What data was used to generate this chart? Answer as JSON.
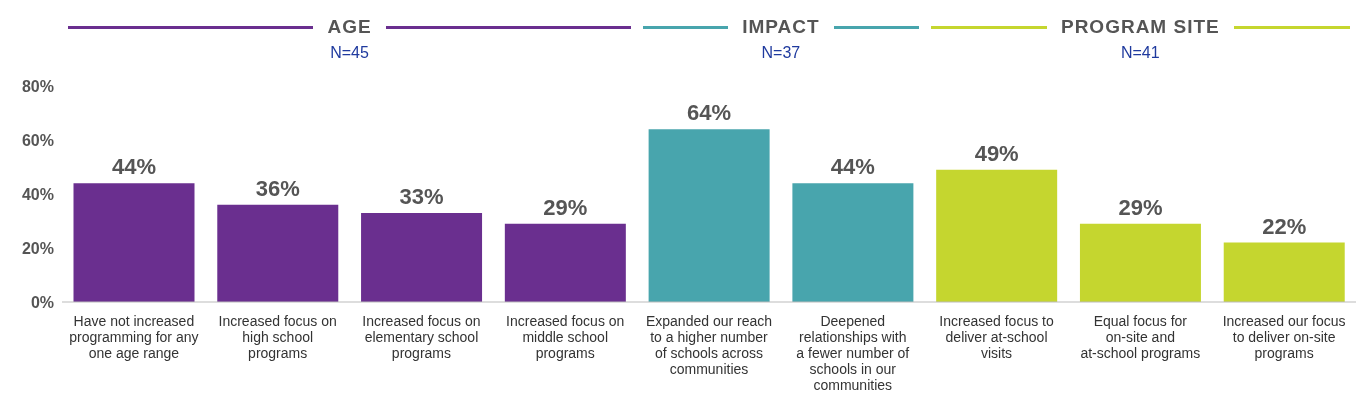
{
  "chart_data": {
    "type": "bar",
    "categories": [
      "Have not increased programming for any one age range",
      "Increased focus on high school programs",
      "Increased focus on elementary school programs",
      "Increased focus on middle school programs",
      "Expanded our reach to a higher number of schools across communities",
      "Deepened relationships with a fewer number of schools in our communities",
      "Increased focus to deliver at-school visits",
      "Equal focus for on-site and at-school programs",
      "Increased our focus to deliver on-site programs"
    ],
    "values": [
      44,
      36,
      33,
      29,
      64,
      44,
      49,
      29,
      22
    ],
    "colors": [
      "#6a2f8f",
      "#6a2f8f",
      "#6a2f8f",
      "#6a2f8f",
      "#48a5ad",
      "#48a5ad",
      "#c5d62f",
      "#c5d62f",
      "#c5d62f"
    ],
    "value_labels": [
      "44%",
      "36%",
      "33%",
      "29%",
      "64%",
      "44%",
      "49%",
      "29%",
      "22%"
    ],
    "ylim": [
      0,
      80
    ],
    "yticks": [
      {
        "value": 0,
        "label": "0%"
      },
      {
        "value": 20,
        "label": "20%"
      },
      {
        "value": 40,
        "label": "40%"
      },
      {
        "value": 60,
        "label": "60%"
      },
      {
        "value": 80,
        "label": "80%"
      }
    ],
    "grid": false,
    "annotations": [
      "AGE",
      "N=45",
      "IMPACT",
      "N=37",
      "PROGRAM SITE",
      "N=41"
    ]
  }
}
